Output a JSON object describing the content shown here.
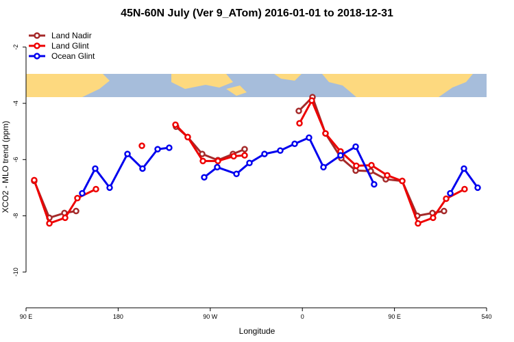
{
  "chart_data": {
    "type": "line",
    "title": "45N-60N July (Ver 9_ATom)   2016-01-01 to 2018-12-31",
    "x_label": "Longitude",
    "y_label": "XCO2 - MLO trend (ppm)",
    "xlim": [
      90,
      540
    ],
    "ylim": [
      -11.27,
      -1.25
    ],
    "xticks": [
      {
        "value": 90,
        "label": "90 E"
      },
      180,
      {
        "value": 270,
        "label": "90 W"
      },
      {
        "value": 360,
        "label": "0"
      },
      {
        "value": 450,
        "label": "90 E"
      },
      540
    ],
    "yticks": [
      -2,
      -4,
      -6,
      -8,
      -10
    ],
    "legend": "top-left",
    "series": [
      {
        "name": "Land Nadir",
        "color": "#a52a2a",
        "x": [
          98.0,
          112.8,
          127.5,
          138.9,
          null,
          236.6,
          248.0,
          262.1,
          277.5,
          292.2,
          303.6,
          null,
          356.5,
          369.9,
          382.6,
          398.0,
          412.1,
          426.8,
          441.5,
          457.6,
          472.3,
          487.1,
          498.4
        ],
        "values": [
          -6.76,
          -8.07,
          -7.9,
          -7.83,
          null,
          -4.83,
          -5.2,
          -5.8,
          -6.02,
          -5.8,
          -5.63,
          null,
          -4.27,
          -3.78,
          -5.07,
          -5.95,
          -6.39,
          -6.41,
          -6.7,
          -6.76,
          -8.0,
          -7.9,
          -7.83
        ]
      },
      {
        "name": "Land Glint",
        "color": "#ee0000",
        "x": [
          98.0,
          112.8,
          128.2,
          140.2,
          158.3,
          null,
          203.2,
          null,
          236.0,
          248.0,
          262.8,
          277.5,
          292.9,
          303.6,
          null,
          357.2,
          369.2,
          382.6,
          397.3,
          412.7,
          427.5,
          442.9,
          457.6,
          473.0,
          487.7,
          500.5,
          518.5
        ],
        "values": [
          -6.73,
          -8.27,
          -8.07,
          -7.37,
          -7.05,
          null,
          -5.51,
          null,
          -4.76,
          -5.2,
          -6.05,
          -6.05,
          -5.88,
          -5.85,
          null,
          -4.71,
          -3.9,
          -5.07,
          -5.71,
          -6.22,
          -6.2,
          -6.56,
          -6.76,
          -8.27,
          -8.07,
          -7.39,
          -7.05
        ]
      },
      {
        "name": "Ocean Glint",
        "color": "#0000ee",
        "x": [
          144.9,
          157.6,
          171.7,
          189.1,
          203.8,
          218.6,
          229.9,
          null,
          264.1,
          276.8,
          295.6,
          308.3,
          323.0,
          338.4,
          352.5,
          366.5,
          380.6,
          397.3,
          412.1,
          430.1,
          null,
          504.5,
          517.9,
          531.3
        ],
        "values": [
          -7.2,
          -6.32,
          -7.0,
          -5.8,
          -6.32,
          -5.63,
          -5.58,
          null,
          -6.63,
          -6.27,
          -6.51,
          -6.12,
          -5.8,
          -5.68,
          -5.44,
          -5.22,
          -6.27,
          -5.85,
          -5.54,
          -6.88,
          null,
          -7.2,
          -6.32,
          -7.0
        ]
      }
    ]
  }
}
